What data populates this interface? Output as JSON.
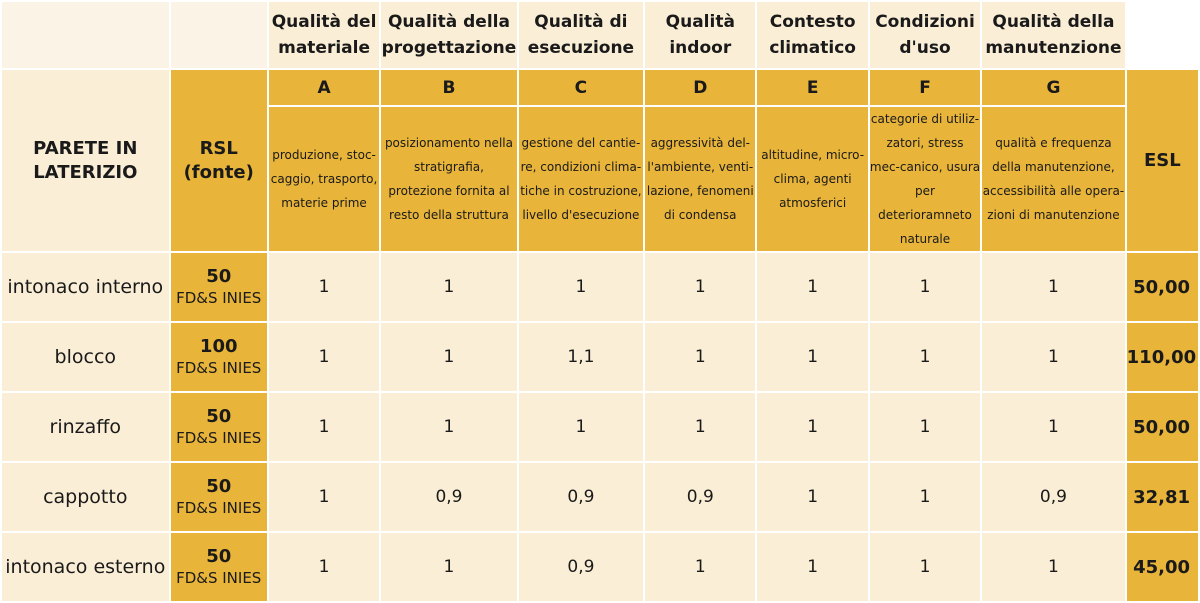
{
  "table": {
    "title": "PARETE IN LATERIZIO",
    "rsl_header": "RSL (fonte)",
    "esl_header": "ESL",
    "factors": [
      {
        "name": "Qualità del materiale",
        "letter": "A",
        "desc": "produzione, stoc-caggio, trasporto, materie prime"
      },
      {
        "name": "Qualità della progettazione",
        "letter": "B",
        "desc": "posizionamento nella stratigrafia, protezione fornita al resto della struttura"
      },
      {
        "name": "Qualità di esecuzione",
        "letter": "C",
        "desc": "gestione del cantie-re, condizioni clima-tiche in costruzione, livello d'esecuzione"
      },
      {
        "name": "Qualità indoor",
        "letter": "D",
        "desc": "aggressività del-l'ambiente, venti-lazione, fenomeni di condensa"
      },
      {
        "name": "Contesto climatico",
        "letter": "E",
        "desc": "altitudine, micro-clima, agenti atmosferici"
      },
      {
        "name": "Condizioni d'uso",
        "letter": "F",
        "desc": "categorie di utiliz-zatori, stress mec-canico, usura per deterioramneto naturale"
      },
      {
        "name": "Qualità della manutenzione",
        "letter": "G",
        "desc": "qualità e frequenza della manutenzione, accessibilità alle opera-zioni di manutenzione"
      }
    ],
    "rows": [
      {
        "name": "intonaco interno",
        "rsl": "50",
        "source": "FD&S INIES",
        "values": [
          "1",
          "1",
          "1",
          "1",
          "1",
          "1",
          "1"
        ],
        "esl": "50,00"
      },
      {
        "name": "blocco",
        "rsl": "100",
        "source": "FD&S INIES",
        "values": [
          "1",
          "1",
          "1,1",
          "1",
          "1",
          "1",
          "1"
        ],
        "esl": "110,00"
      },
      {
        "name": "rinzaffo",
        "rsl": "50",
        "source": "FD&S INIES",
        "values": [
          "1",
          "1",
          "1",
          "1",
          "1",
          "1",
          "1"
        ],
        "esl": "50,00"
      },
      {
        "name": "cappotto",
        "rsl": "50",
        "source": "FD&S INIES",
        "values": [
          "1",
          "0,9",
          "0,9",
          "0,9",
          "1",
          "1",
          "0,9"
        ],
        "esl": "32,81"
      },
      {
        "name": "intonaco esterno",
        "rsl": "50",
        "source": "FD&S INIES",
        "values": [
          "1",
          "1",
          "0,9",
          "1",
          "1",
          "1",
          "1"
        ],
        "esl": "45,00"
      }
    ]
  }
}
